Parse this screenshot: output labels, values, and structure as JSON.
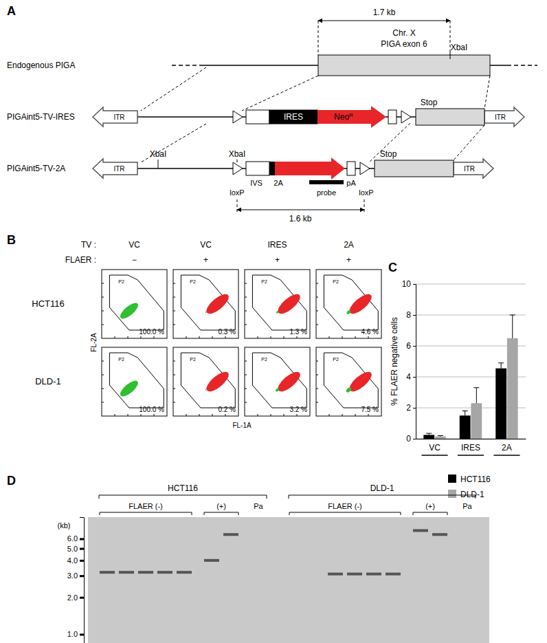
{
  "panel_a": {
    "label": "A",
    "distance_top": "1.7 kb",
    "distance_bottom": "1.6 kb",
    "rows": [
      {
        "name": "Endogenous PIGA",
        "chromosome": "Chr. X",
        "exon": "PIGA exon 6",
        "site": "XbaI"
      },
      {
        "name": "PIGAint5-TV-IRES",
        "itr_left": "ITR",
        "itr_right": "ITR",
        "ires": "IRES",
        "neo": "Neo",
        "neo_sup": "R",
        "stop": "Stop"
      },
      {
        "name": "PIGAint5-TV-2A",
        "itr_left": "ITR",
        "itr_right": "ITR",
        "site_left": "XbaI",
        "site_right": "XbaI",
        "ivs": "IVS",
        "peptide": "2A",
        "polya": "pA",
        "probe": "probe",
        "loxp_left": "loxP",
        "loxp_right": "loxP",
        "stop": "Stop"
      }
    ]
  },
  "panel_b": {
    "label": "B",
    "tv_header": "TV :",
    "flaer_header": "FLAER :",
    "columns": [
      {
        "tv": "VC",
        "flaer": "−"
      },
      {
        "tv": "VC",
        "flaer": "+"
      },
      {
        "tv": "IRES",
        "flaer": "+"
      },
      {
        "tv": "2A",
        "flaer": "+"
      }
    ],
    "gate": "P2",
    "y_label": "FL-2A",
    "x_label": "FL-1A",
    "rows": [
      {
        "name": "HCT116",
        "values": [
          100,
          0.3,
          1.3,
          4.6
        ],
        "value_labels": [
          "100.0 %",
          "0.3 %",
          "1.3 %",
          "4.6 %"
        ]
      },
      {
        "name": "DLD-1",
        "values": [
          100,
          0.2,
          3.2,
          7.5
        ],
        "value_labels": [
          "100.0 %",
          "0.2 %",
          "3.2 %",
          "7.5 %"
        ]
      }
    ]
  },
  "chart_data": {
    "type": "bar",
    "title": "C",
    "categories": [
      "VC",
      "IRES",
      "2A"
    ],
    "series": [
      {
        "name": "HCT116",
        "color": "#000000",
        "values": [
          0.25,
          1.5,
          4.55
        ],
        "errors": [
          0.1,
          0.3,
          0.35
        ]
      },
      {
        "name": "DLD-1",
        "color": "#a6a6a6",
        "values": [
          0.15,
          2.3,
          6.5
        ],
        "errors": [
          0.05,
          1.0,
          1.5
        ]
      }
    ],
    "ylim": [
      0,
      10
    ],
    "yticks": [
      0,
      2,
      4,
      6,
      8,
      10
    ],
    "y_label": "% FLAER negative cells",
    "grid": true,
    "legend": "bottom"
  },
  "panel_d": {
    "label": "D",
    "axis_title": "(kb)",
    "log": true,
    "ylim": [
      0.85,
      9
    ],
    "yticks": [
      {
        "value": 6,
        "label": "6.0"
      },
      {
        "value": 5,
        "label": "5.0"
      },
      {
        "value": 4,
        "label": "4.0"
      },
      {
        "value": 3,
        "label": "3.0"
      },
      {
        "value": 2,
        "label": "2.0"
      },
      {
        "value": 1,
        "label": "1.0"
      }
    ],
    "cell_lines": [
      {
        "name": "HCT116",
        "groups": [
          {
            "name": "FLAER (-)",
            "lanes": [
              [
                3.2
              ],
              [
                3.2
              ],
              [
                3.2
              ],
              [
                3.2
              ],
              [
                3.2
              ]
            ]
          },
          {
            "name": "(+)",
            "lanes": [
              [
                4
              ],
              [
                6.5
              ]
            ]
          },
          {
            "name": "Pa",
            "lanes": [
              []
            ]
          }
        ]
      },
      {
        "name": "DLD-1",
        "groups": [
          {
            "name": "FLAER (-)",
            "lanes": [
              [],
              [],
              [
                3.1
              ],
              [
                3.1
              ],
              [
                3.1
              ],
              [
                3.1
              ]
            ]
          },
          {
            "name": "(+)",
            "lanes": [
              [
                7
              ],
              [
                6.5
              ]
            ]
          },
          {
            "name": "Pa",
            "lanes": [
              []
            ]
          }
        ]
      }
    ]
  }
}
